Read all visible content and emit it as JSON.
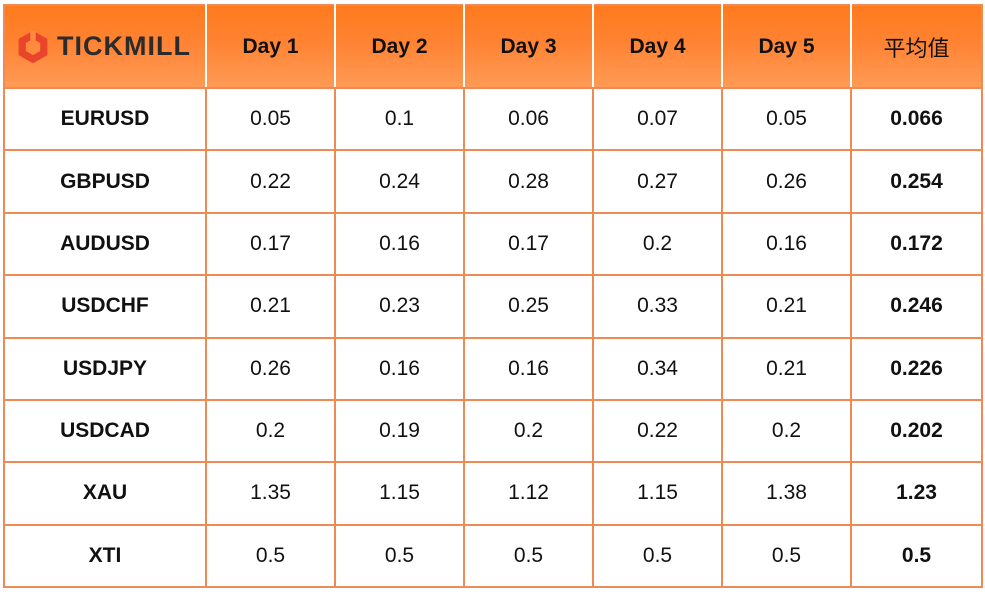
{
  "brand": {
    "name": "TICKMILL",
    "logo_icon": "tickmill-hexagon-logo-icon",
    "accent_color": "#ff7a1c",
    "logo_color": "#e8452a",
    "border_color": "#f08a55"
  },
  "chart_data": {
    "type": "table",
    "columns": [
      "Day 1",
      "Day 2",
      "Day 3",
      "Day 4",
      "Day 5",
      "平均值"
    ],
    "rows": [
      {
        "label": "EURUSD",
        "values": [
          "0.05",
          "0.1",
          "0.06",
          "0.07",
          "0.05"
        ],
        "average": "0.066"
      },
      {
        "label": "GBPUSD",
        "values": [
          "0.22",
          "0.24",
          "0.28",
          "0.27",
          "0.26"
        ],
        "average": "0.254"
      },
      {
        "label": "AUDUSD",
        "values": [
          "0.17",
          "0.16",
          "0.17",
          "0.2",
          "0.16"
        ],
        "average": "0.172"
      },
      {
        "label": "USDCHF",
        "values": [
          "0.21",
          "0.23",
          "0.25",
          "0.33",
          "0.21"
        ],
        "average": "0.246"
      },
      {
        "label": "USDJPY",
        "values": [
          "0.26",
          "0.16",
          "0.16",
          "0.34",
          "0.21"
        ],
        "average": "0.226"
      },
      {
        "label": "USDCAD",
        "values": [
          "0.2",
          "0.19",
          "0.2",
          "0.22",
          "0.2"
        ],
        "average": "0.202"
      },
      {
        "label": "XAU",
        "values": [
          "1.35",
          "1.15",
          "1.12",
          "1.15",
          "1.38"
        ],
        "average": "1.23"
      },
      {
        "label": "XTI",
        "values": [
          "0.5",
          "0.5",
          "0.5",
          "0.5",
          "0.5"
        ],
        "average": "0.5"
      }
    ]
  }
}
